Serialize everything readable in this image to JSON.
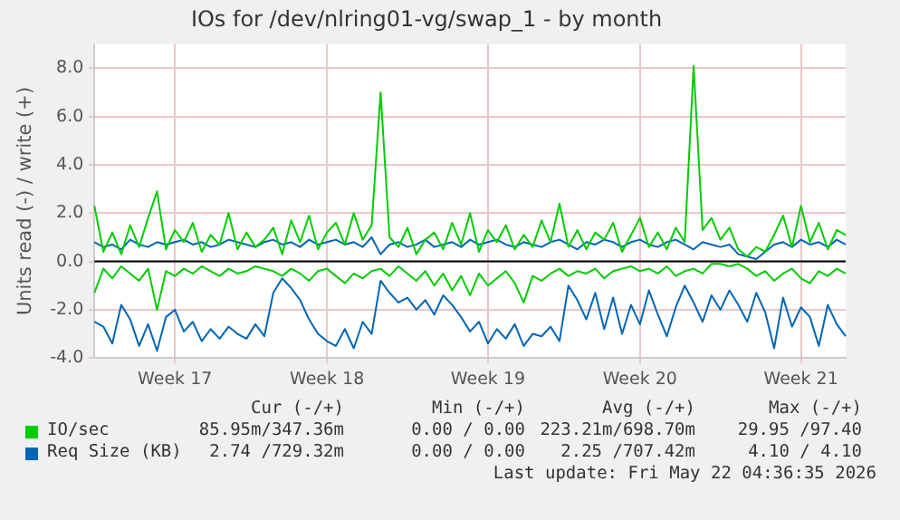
{
  "chart_data": {
    "type": "line",
    "title": "IOs for /dev/nlring01-vg/swap_1 - by month",
    "ylabel": "Units read (-) / write (+)",
    "categories": [
      null,
      null,
      null,
      null,
      null,
      null,
      null,
      null,
      null,
      "Week 17",
      null,
      null,
      null,
      null,
      null,
      null,
      null,
      null,
      null,
      null,
      null,
      null,
      null,
      null,
      null,
      null,
      "Week 18",
      null,
      null,
      null,
      null,
      null,
      null,
      null,
      null,
      null,
      null,
      null,
      null,
      null,
      null,
      null,
      null,
      null,
      "Week 19",
      null,
      null,
      null,
      null,
      null,
      null,
      null,
      null,
      null,
      null,
      null,
      null,
      null,
      null,
      null,
      null,
      "Week 20",
      null,
      null,
      null,
      null,
      null,
      null,
      null,
      null,
      null,
      null,
      null,
      null,
      null,
      null,
      null,
      null,
      null,
      "Week 21",
      null,
      null,
      null,
      null,
      null
    ],
    "ylim": [
      -4,
      9
    ],
    "yticks": [
      {
        "value": -4,
        "label": "-4.0"
      },
      {
        "value": -2,
        "label": "-2.0"
      },
      {
        "value": 0,
        "label": "0.0"
      },
      {
        "value": 2,
        "label": "2.0"
      },
      {
        "value": 4,
        "label": "4.0"
      },
      {
        "value": 6,
        "label": "6.0"
      },
      {
        "value": 8,
        "label": "8.0"
      }
    ],
    "grid": true,
    "legend": "bottom",
    "ref_lines": [
      {
        "axis": "y",
        "value": 0,
        "color": "#000000"
      }
    ],
    "series": [
      {
        "name": "IO/sec",
        "color": "#00cc00",
        "values": [
          2.3,
          0.4,
          1.2,
          0.3,
          1.5,
          0.6,
          1.8,
          2.9,
          0.5,
          1.3,
          0.8,
          1.6,
          0.4,
          1.1,
          0.7,
          2.0,
          0.5,
          1.2,
          0.6,
          0.9,
          1.4,
          0.3,
          1.7,
          0.8,
          1.9,
          0.5,
          1.2,
          1.6,
          0.7,
          2.0,
          0.9,
          1.5,
          7.0,
          1.0,
          0.6,
          1.4,
          0.3,
          0.9,
          1.2,
          0.5,
          1.6,
          0.7,
          2.0,
          0.4,
          1.3,
          0.8,
          1.5,
          0.5,
          1.1,
          0.6,
          1.7,
          0.8,
          2.4,
          0.6,
          1.3,
          0.5,
          1.2,
          0.9,
          1.6,
          0.4,
          1.1,
          1.8,
          0.6,
          1.2,
          0.5,
          1.4,
          0.8,
          8.1,
          1.3,
          1.8,
          0.9,
          1.4,
          0.5,
          0.2,
          0.6,
          0.4,
          1.1,
          1.9,
          0.6,
          2.3,
          0.8,
          1.6,
          0.5,
          1.3,
          1.1
        ]
      },
      {
        "color": "#00cc00",
        "values": [
          -1.3,
          -0.3,
          -0.7,
          -0.2,
          -0.5,
          -0.8,
          -0.3,
          -2.0,
          -0.4,
          -0.6,
          -0.3,
          -0.5,
          -0.2,
          -0.4,
          -0.6,
          -0.3,
          -0.5,
          -0.4,
          -0.2,
          -0.3,
          -0.4,
          -0.6,
          -0.3,
          -0.5,
          -0.8,
          -0.4,
          -0.3,
          -0.6,
          -0.9,
          -0.5,
          -0.7,
          -0.4,
          -0.3,
          -0.6,
          -0.2,
          -0.5,
          -0.8,
          -0.4,
          -1.0,
          -0.5,
          -1.2,
          -0.6,
          -1.4,
          -0.5,
          -1.0,
          -0.7,
          -0.4,
          -0.9,
          -1.7,
          -0.6,
          -0.8,
          -0.5,
          -0.3,
          -0.6,
          -0.4,
          -0.5,
          -0.3,
          -0.7,
          -0.4,
          -0.3,
          -0.2,
          -0.4,
          -0.3,
          -0.5,
          -0.2,
          -0.6,
          -0.4,
          -0.3,
          -0.5,
          -0.1,
          -0.1,
          -0.2,
          -0.1,
          -0.3,
          -0.6,
          -0.4,
          -0.8,
          -0.5,
          -0.3,
          -0.7,
          -0.9,
          -0.4,
          -0.6,
          -0.3,
          -0.5
        ]
      },
      {
        "name": "Req Size (KB)",
        "color": "#0066b3",
        "values": [
          0.8,
          0.6,
          0.7,
          0.5,
          0.9,
          0.7,
          0.6,
          0.8,
          0.7,
          0.8,
          0.9,
          0.7,
          0.8,
          0.6,
          0.7,
          0.9,
          0.8,
          0.7,
          0.6,
          0.8,
          0.9,
          0.7,
          0.8,
          0.6,
          0.9,
          0.7,
          0.8,
          0.9,
          0.7,
          0.8,
          0.6,
          1.0,
          0.3,
          0.7,
          0.8,
          0.6,
          0.7,
          0.9,
          0.6,
          0.7,
          0.8,
          0.6,
          0.9,
          0.7,
          0.8,
          0.9,
          0.7,
          0.6,
          0.8,
          0.7,
          0.6,
          0.8,
          0.9,
          0.7,
          0.5,
          0.8,
          0.7,
          0.9,
          0.8,
          0.6,
          0.8,
          0.9,
          0.7,
          0.6,
          0.8,
          0.9,
          0.7,
          0.5,
          0.8,
          0.7,
          0.6,
          0.7,
          0.3,
          0.2,
          0.1,
          0.4,
          0.7,
          0.8,
          0.6,
          0.9,
          0.7,
          0.8,
          0.6,
          0.9,
          0.7
        ]
      },
      {
        "color": "#0066b3",
        "values": [
          -2.5,
          -2.7,
          -3.4,
          -1.8,
          -2.4,
          -3.5,
          -2.6,
          -3.7,
          -2.3,
          -2.0,
          -2.9,
          -2.5,
          -3.3,
          -2.8,
          -3.2,
          -2.7,
          -3.0,
          -3.2,
          -2.6,
          -3.1,
          -1.3,
          -0.7,
          -1.1,
          -1.6,
          -2.4,
          -3.0,
          -3.3,
          -3.5,
          -2.8,
          -3.6,
          -2.5,
          -3.0,
          -0.8,
          -1.3,
          -1.7,
          -1.5,
          -2.0,
          -1.6,
          -2.2,
          -1.4,
          -1.8,
          -2.3,
          -2.9,
          -2.5,
          -3.4,
          -2.8,
          -3.2,
          -2.6,
          -3.5,
          -3.0,
          -3.1,
          -2.7,
          -3.3,
          -1.0,
          -1.6,
          -2.4,
          -1.3,
          -2.8,
          -1.5,
          -3.0,
          -1.8,
          -2.6,
          -1.2,
          -2.2,
          -3.1,
          -1.9,
          -1.0,
          -1.7,
          -2.5,
          -1.4,
          -2.0,
          -1.2,
          -1.8,
          -2.5,
          -1.3,
          -2.1,
          -3.6,
          -1.5,
          -2.7,
          -1.9,
          -2.3,
          -3.5,
          -1.8,
          -2.6,
          -3.1
        ]
      }
    ],
    "annotations": [
      "Cur (-/+)",
      "Min (-/+)",
      "Avg (-/+)",
      "Max (-/+)",
      "85.95m/347.36m",
      "0.00 / 0.00",
      "223.21m/698.70m",
      "29.95 /97.40",
      "2.74 /729.32m",
      "0.00 / 0.00",
      "2.25 /707.42m",
      "4.10 / 4.10",
      "Last update: Fri May 22 04:36:35 2026"
    ]
  }
}
